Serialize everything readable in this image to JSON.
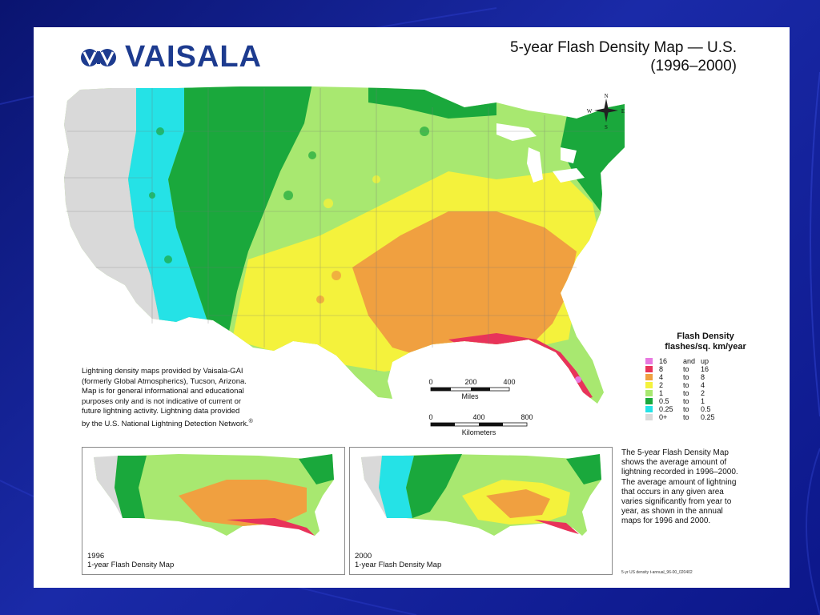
{
  "branding": {
    "logo_text": "VAISALA",
    "logo_icon": "vaisala-logo-icon"
  },
  "title": {
    "line1": "5-year Flash Density Map — U.S.",
    "line2": "(1996–2000)"
  },
  "compass": {
    "n": "N",
    "s": "S",
    "e": "E",
    "w": "W"
  },
  "legend": {
    "title": "Flash Density",
    "units": "flashes/sq. km/year",
    "items": [
      {
        "from": "16",
        "sep": "and",
        "to": "up",
        "color": "#e879e0"
      },
      {
        "from": "8",
        "sep": "to",
        "to": "16",
        "color": "#e8335a"
      },
      {
        "from": "4",
        "sep": "to",
        "to": "8",
        "color": "#f0a040"
      },
      {
        "from": "2",
        "sep": "to",
        "to": "4",
        "color": "#f4f23c"
      },
      {
        "from": "1",
        "sep": "to",
        "to": "2",
        "color": "#a8e870"
      },
      {
        "from": "0.5",
        "sep": "to",
        "to": "1",
        "color": "#1aa83c"
      },
      {
        "from": "0.25",
        "sep": "to",
        "to": "0.5",
        "color": "#25e2e6"
      },
      {
        "from": "0+",
        "sep": "to",
        "to": "0.25",
        "color": "#d9d9d9"
      }
    ]
  },
  "scale_miles": {
    "ticks": [
      "0",
      "200",
      "400"
    ],
    "unit": "Miles"
  },
  "scale_km": {
    "ticks": [
      "0",
      "400",
      "800"
    ],
    "unit": "Kilometers"
  },
  "credit": {
    "line1": "Lightning density maps provided by Vaisala-GAI",
    "line2": "(formerly Global Atmospherics), Tucson, Arizona.",
    "line3": "Map is for general informational and educational",
    "line4": "purposes only and is not indicative of current or",
    "line5": "future lightning activity. Lightning data provided",
    "line6": "by the U.S. National Lightning Detection Network.",
    "mark": "®"
  },
  "insets": [
    {
      "year": "1996",
      "label": "1-year Flash Density Map"
    },
    {
      "year": "2000",
      "label": "1-year Flash Density Map"
    }
  ],
  "description": {
    "line1": "The 5-year Flash Density Map",
    "line2": "shows the average amount of",
    "line3": "lightning recorded in 1996–2000.",
    "line4": "The average amount of lightning",
    "line5": "that occurs in any given area",
    "line6": "varies significantly from year to",
    "line7": "year, as shown in the annual",
    "line8": "maps for 1996 and 2000."
  },
  "file_ref": "5-yr US density t-annual_96-00_020402",
  "colors": {
    "slide_bg": "#1a2aa8",
    "logo_blue": "#1d3b8f",
    "density_gray": "#d9d9d9",
    "density_cyan": "#25e2e6",
    "density_green": "#1aa83c",
    "density_lightgreen": "#a8e870",
    "density_yellow": "#f4f23c",
    "density_orange": "#f0a040",
    "density_red": "#e8335a"
  }
}
